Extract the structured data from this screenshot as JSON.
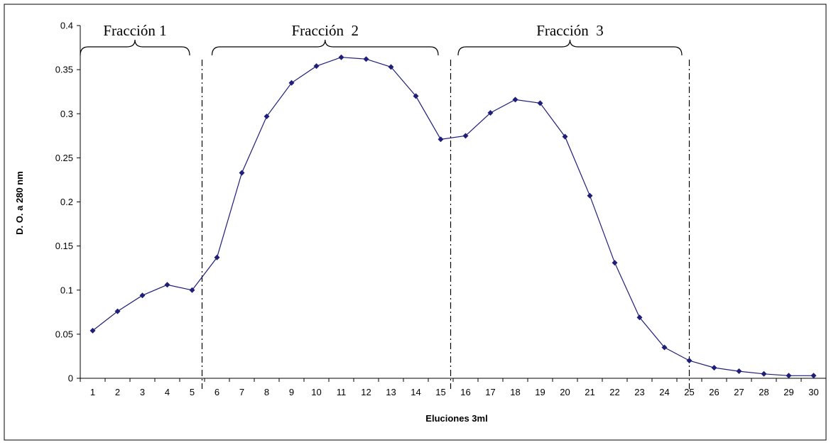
{
  "chart_data": {
    "type": "line",
    "xlabel": "Eluciones 3ml",
    "ylabel": "D. O. a 280 nm",
    "xlim": [
      0.5,
      30.5
    ],
    "ylim": [
      0,
      0.4
    ],
    "y_ticks": [
      "0",
      "0.05",
      "0.1",
      "0.15",
      "0.2",
      "0.25",
      "0.3",
      "0.35",
      "0.4"
    ],
    "x_ticks": [
      "1",
      "2",
      "3",
      "4",
      "5",
      "6",
      "7",
      "8",
      "9",
      "10",
      "11",
      "12",
      "13",
      "14",
      "15",
      "16",
      "17",
      "18",
      "19",
      "20",
      "21",
      "22",
      "23",
      "24",
      "25",
      "26",
      "27",
      "28",
      "29",
      "30"
    ],
    "grid": false,
    "legend": "none",
    "colors": {
      "series": "#1f1f7a",
      "axis": "#000000"
    },
    "series": [
      {
        "x": [
          1,
          2,
          3,
          4,
          5,
          6,
          7,
          8,
          9,
          10,
          11,
          12,
          13,
          14,
          15,
          16,
          17,
          18,
          19,
          20,
          21,
          22,
          23,
          24,
          25,
          26,
          27,
          28,
          29,
          30
        ],
        "values": [
          0.054,
          0.076,
          0.094,
          0.106,
          0.1,
          0.137,
          0.233,
          0.297,
          0.335,
          0.354,
          0.364,
          0.362,
          0.353,
          0.32,
          0.271,
          0.275,
          0.301,
          0.316,
          0.312,
          0.274,
          0.207,
          0.131,
          0.069,
          0.035,
          0.02,
          0.012,
          0.008,
          0.005,
          0.003,
          0.003
        ]
      }
    ],
    "dividers": [
      5.4,
      15.4,
      25.0
    ],
    "fractions": [
      {
        "label": "Fracción 1",
        "from": 0.5,
        "to": 4.9
      },
      {
        "label": "Fracción  2",
        "from": 5.8,
        "to": 14.9
      },
      {
        "label": "Fracción  3",
        "from": 15.7,
        "to": 24.7
      }
    ]
  }
}
